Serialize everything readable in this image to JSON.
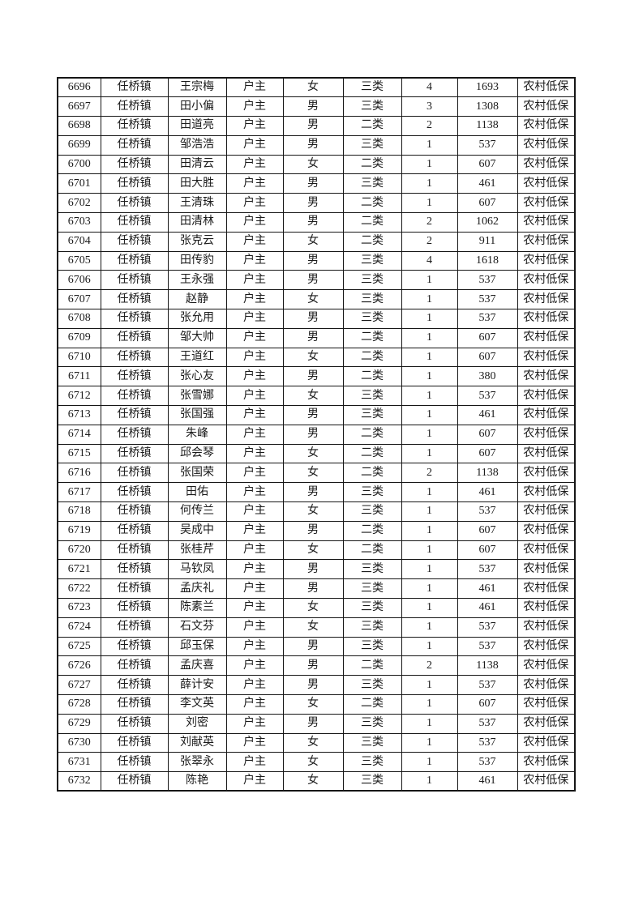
{
  "colors": {
    "page_background": "#ffffff",
    "grid_border": "#161616",
    "text": "#1b1b1b"
  },
  "table": {
    "column_keys": [
      "serial-number",
      "town",
      "name",
      "relation-to-head",
      "gender",
      "category",
      "person-count",
      "amount",
      "subsidy-type"
    ],
    "rows": [
      [
        "6696",
        "任桥镇",
        "王宗梅",
        "户主",
        "女",
        "三类",
        "4",
        "1693",
        "农村低保"
      ],
      [
        "6697",
        "任桥镇",
        "田小偏",
        "户主",
        "男",
        "三类",
        "3",
        "1308",
        "农村低保"
      ],
      [
        "6698",
        "任桥镇",
        "田道亮",
        "户主",
        "男",
        "二类",
        "2",
        "1138",
        "农村低保"
      ],
      [
        "6699",
        "任桥镇",
        "邹浩浩",
        "户主",
        "男",
        "三类",
        "1",
        "537",
        "农村低保"
      ],
      [
        "6700",
        "任桥镇",
        "田清云",
        "户主",
        "女",
        "二类",
        "1",
        "607",
        "农村低保"
      ],
      [
        "6701",
        "任桥镇",
        "田大胜",
        "户主",
        "男",
        "三类",
        "1",
        "461",
        "农村低保"
      ],
      [
        "6702",
        "任桥镇",
        "王清珠",
        "户主",
        "男",
        "二类",
        "1",
        "607",
        "农村低保"
      ],
      [
        "6703",
        "任桥镇",
        "田清林",
        "户主",
        "男",
        "二类",
        "2",
        "1062",
        "农村低保"
      ],
      [
        "6704",
        "任桥镇",
        "张克云",
        "户主",
        "女",
        "二类",
        "2",
        "911",
        "农村低保"
      ],
      [
        "6705",
        "任桥镇",
        "田传豹",
        "户主",
        "男",
        "三类",
        "4",
        "1618",
        "农村低保"
      ],
      [
        "6706",
        "任桥镇",
        "王永强",
        "户主",
        "男",
        "三类",
        "1",
        "537",
        "农村低保"
      ],
      [
        "6707",
        "任桥镇",
        "赵静",
        "户主",
        "女",
        "三类",
        "1",
        "537",
        "农村低保"
      ],
      [
        "6708",
        "任桥镇",
        "张允用",
        "户主",
        "男",
        "三类",
        "1",
        "537",
        "农村低保"
      ],
      [
        "6709",
        "任桥镇",
        "邹大帅",
        "户主",
        "男",
        "二类",
        "1",
        "607",
        "农村低保"
      ],
      [
        "6710",
        "任桥镇",
        "王道红",
        "户主",
        "女",
        "二类",
        "1",
        "607",
        "农村低保"
      ],
      [
        "6711",
        "任桥镇",
        "张心友",
        "户主",
        "男",
        "二类",
        "1",
        "380",
        "农村低保"
      ],
      [
        "6712",
        "任桥镇",
        "张雪娜",
        "户主",
        "女",
        "三类",
        "1",
        "537",
        "农村低保"
      ],
      [
        "6713",
        "任桥镇",
        "张国强",
        "户主",
        "男",
        "三类",
        "1",
        "461",
        "农村低保"
      ],
      [
        "6714",
        "任桥镇",
        "朱峰",
        "户主",
        "男",
        "二类",
        "1",
        "607",
        "农村低保"
      ],
      [
        "6715",
        "任桥镇",
        "邱会琴",
        "户主",
        "女",
        "二类",
        "1",
        "607",
        "农村低保"
      ],
      [
        "6716",
        "任桥镇",
        "张国荣",
        "户主",
        "女",
        "二类",
        "2",
        "1138",
        "农村低保"
      ],
      [
        "6717",
        "任桥镇",
        "田佑",
        "户主",
        "男",
        "三类",
        "1",
        "461",
        "农村低保"
      ],
      [
        "6718",
        "任桥镇",
        "何传兰",
        "户主",
        "女",
        "三类",
        "1",
        "537",
        "农村低保"
      ],
      [
        "6719",
        "任桥镇",
        "吴成中",
        "户主",
        "男",
        "二类",
        "1",
        "607",
        "农村低保"
      ],
      [
        "6720",
        "任桥镇",
        "张桂芹",
        "户主",
        "女",
        "二类",
        "1",
        "607",
        "农村低保"
      ],
      [
        "6721",
        "任桥镇",
        "马钦凤",
        "户主",
        "男",
        "三类",
        "1",
        "537",
        "农村低保"
      ],
      [
        "6722",
        "任桥镇",
        "孟庆礼",
        "户主",
        "男",
        "三类",
        "1",
        "461",
        "农村低保"
      ],
      [
        "6723",
        "任桥镇",
        "陈素兰",
        "户主",
        "女",
        "三类",
        "1",
        "461",
        "农村低保"
      ],
      [
        "6724",
        "任桥镇",
        "石文芬",
        "户主",
        "女",
        "三类",
        "1",
        "537",
        "农村低保"
      ],
      [
        "6725",
        "任桥镇",
        "邱玉保",
        "户主",
        "男",
        "三类",
        "1",
        "537",
        "农村低保"
      ],
      [
        "6726",
        "任桥镇",
        "孟庆喜",
        "户主",
        "男",
        "二类",
        "2",
        "1138",
        "农村低保"
      ],
      [
        "6727",
        "任桥镇",
        "薛计安",
        "户主",
        "男",
        "三类",
        "1",
        "537",
        "农村低保"
      ],
      [
        "6728",
        "任桥镇",
        "李文英",
        "户主",
        "女",
        "二类",
        "1",
        "607",
        "农村低保"
      ],
      [
        "6729",
        "任桥镇",
        "刘密",
        "户主",
        "男",
        "三类",
        "1",
        "537",
        "农村低保"
      ],
      [
        "6730",
        "任桥镇",
        "刘献英",
        "户主",
        "女",
        "三类",
        "1",
        "537",
        "农村低保"
      ],
      [
        "6731",
        "任桥镇",
        "张翠永",
        "户主",
        "女",
        "三类",
        "1",
        "537",
        "农村低保"
      ],
      [
        "6732",
        "任桥镇",
        "陈艳",
        "户主",
        "女",
        "三类",
        "1",
        "461",
        "农村低保"
      ]
    ]
  }
}
